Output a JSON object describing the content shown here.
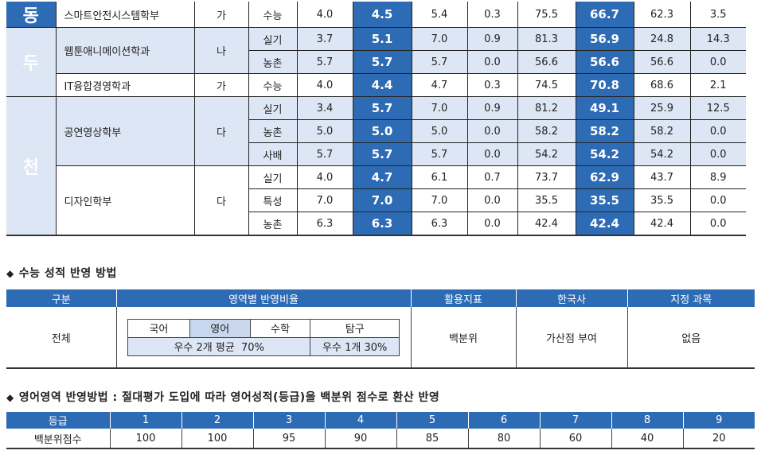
{
  "univ_chars": [
    "동",
    "두",
    "천"
  ],
  "admissions": [
    {
      "dept": "스마트안전시스템학부",
      "gun": "가",
      "rows": [
        {
          "type": "수능",
          "v": [
            "4.0",
            "4.5",
            "5.4",
            "0.3",
            "75.5",
            "66.7",
            "62.3",
            "3.5"
          ]
        }
      ]
    },
    {
      "dept": "웹툰애니메이션학과",
      "gun": "나",
      "rows": [
        {
          "type": "실기",
          "v": [
            "3.7",
            "5.1",
            "7.0",
            "0.9",
            "81.3",
            "56.9",
            "24.8",
            "14.3"
          ]
        },
        {
          "type": "농촌",
          "v": [
            "5.7",
            "5.7",
            "5.7",
            "0.0",
            "56.6",
            "56.6",
            "56.6",
            "0.0"
          ]
        }
      ]
    },
    {
      "dept": "IT융합경영학과",
      "gun": "가",
      "rows": [
        {
          "type": "수능",
          "v": [
            "4.0",
            "4.4",
            "4.7",
            "0.3",
            "74.5",
            "70.8",
            "68.6",
            "2.1"
          ]
        }
      ]
    },
    {
      "dept": "공연영상학부",
      "gun": "다",
      "rows": [
        {
          "type": "실기",
          "v": [
            "3.4",
            "5.7",
            "7.0",
            "0.9",
            "81.2",
            "49.1",
            "25.9",
            "12.5"
          ]
        },
        {
          "type": "농촌",
          "v": [
            "5.0",
            "5.0",
            "5.0",
            "0.0",
            "58.2",
            "58.2",
            "58.2",
            "0.0"
          ]
        },
        {
          "type": "사배",
          "v": [
            "5.7",
            "5.7",
            "5.7",
            "0.0",
            "54.2",
            "54.2",
            "54.2",
            "0.0"
          ]
        }
      ]
    },
    {
      "dept": "디자인학부",
      "gun": "다",
      "rows": [
        {
          "type": "실기",
          "v": [
            "4.0",
            "4.7",
            "6.1",
            "0.7",
            "73.7",
            "62.9",
            "43.7",
            "8.9"
          ]
        },
        {
          "type": "특성",
          "v": [
            "7.0",
            "7.0",
            "7.0",
            "0.0",
            "35.5",
            "35.5",
            "35.5",
            "0.0"
          ]
        },
        {
          "type": "농촌",
          "v": [
            "6.3",
            "6.3",
            "6.3",
            "0.0",
            "42.4",
            "42.4",
            "42.4",
            "0.0"
          ]
        }
      ]
    }
  ],
  "suneung": {
    "title": "수능 성적 반영 방법",
    "headers": [
      "구분",
      "영역별 반영비율",
      "활용지표",
      "한국사",
      "지정 과목"
    ],
    "gubun": "전체",
    "subjects": [
      "국어",
      "영어",
      "수학",
      "탐구"
    ],
    "ratio_main": "우수 2개 평균  70%",
    "ratio_sub": "우수 1개 30%",
    "index": "백분위",
    "history": "가산점 부여",
    "required": "없음"
  },
  "english": {
    "title": "영어영역 반영방법 : 절대평가 도입에 따라 영어성적(등급)을 백분위 점수로 환산 반영",
    "grade_label": "등급",
    "grades": [
      "1",
      "2",
      "3",
      "4",
      "5",
      "6",
      "7",
      "8",
      "9"
    ],
    "score_label": "백분위점수",
    "scores": [
      "100",
      "100",
      "95",
      "90",
      "85",
      "80",
      "60",
      "40",
      "20"
    ]
  },
  "colors": {
    "header_blue": "#2e6bb5",
    "row_shade": "#dde6f4"
  }
}
